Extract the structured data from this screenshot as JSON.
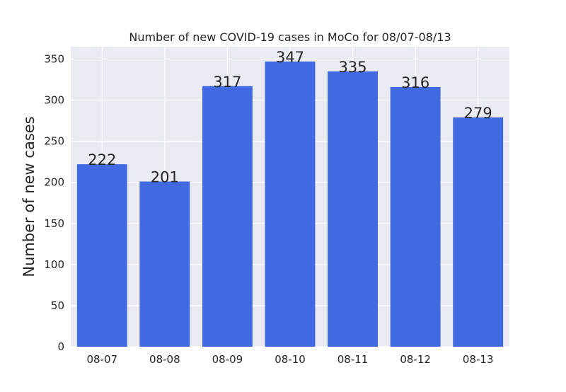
{
  "chart_data": {
    "type": "bar",
    "title": "Number of new COVID-19 cases in MoCo for 08/07-08/13",
    "xlabel": "",
    "ylabel": "Number of new cases",
    "categories": [
      "08-07",
      "08-08",
      "08-09",
      "08-10",
      "08-11",
      "08-12",
      "08-13"
    ],
    "values": [
      222,
      201,
      317,
      347,
      335,
      316,
      279
    ],
    "value_labels": [
      "222",
      "201",
      "317",
      "347",
      "335",
      "316",
      "279"
    ],
    "ylim": [
      0,
      365
    ],
    "yticks": [
      0,
      50,
      100,
      150,
      200,
      250,
      300,
      350
    ],
    "ytick_labels": [
      "0",
      "50",
      "100",
      "150",
      "200",
      "250",
      "300",
      "350"
    ],
    "grid": true,
    "bar_color": "#4169e1",
    "background_color": "#eaeaf2"
  }
}
